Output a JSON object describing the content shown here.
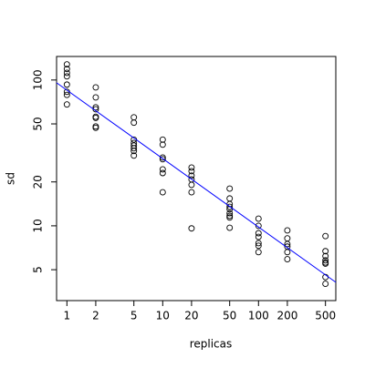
{
  "chart_data": {
    "type": "scatter",
    "xlabel": "replicas",
    "ylabel": "sd",
    "xlog": true,
    "ylog": true,
    "xlim": [
      0.78,
      641
    ],
    "ylim": [
      3.07,
      145
    ],
    "xticks": [
      1,
      2,
      5,
      10,
      20,
      50,
      100,
      200,
      500
    ],
    "yticks": [
      5,
      10,
      20,
      50,
      100
    ],
    "color": "#000000",
    "x": [
      1,
      1,
      1,
      1,
      1,
      1,
      1,
      1,
      2,
      2,
      2,
      2,
      2,
      2,
      2,
      2,
      5,
      5,
      5,
      5,
      5,
      5,
      5,
      5,
      10,
      10,
      10,
      10,
      10,
      10,
      10,
      20,
      20,
      20,
      20,
      20,
      20,
      20,
      50,
      50,
      50,
      50,
      50,
      50,
      50,
      50,
      50,
      100,
      100,
      100,
      100,
      100,
      100,
      100,
      200,
      200,
      200,
      200,
      200,
      200,
      500,
      500,
      500,
      500,
      500,
      500,
      500,
      500
    ],
    "y": [
      128,
      119,
      112,
      106,
      93,
      83,
      79,
      68,
      89,
      76,
      65,
      63,
      56,
      55,
      48,
      47,
      55.5,
      51,
      39,
      37,
      35.5,
      34,
      32.6,
      30.3,
      39,
      36,
      29.4,
      28.6,
      24.4,
      23,
      17,
      25.1,
      23.7,
      22.1,
      20.8,
      19.1,
      17,
      9.6,
      18,
      15.4,
      14.1,
      13.5,
      13,
      12.2,
      11.7,
      11.4,
      9.7,
      11.2,
      10,
      8.9,
      8.4,
      7.6,
      7.3,
      6.6,
      9.3,
      8.2,
      7.5,
      7.2,
      6.6,
      5.9,
      8.5,
      6.7,
      6.2,
      5.8,
      5.6,
      5.5,
      4.45,
      4.0
    ],
    "trend_line": {
      "x": [
        0.78,
        641
      ],
      "y": [
        95.7,
        4.1
      ],
      "color": "#0000ff"
    }
  }
}
